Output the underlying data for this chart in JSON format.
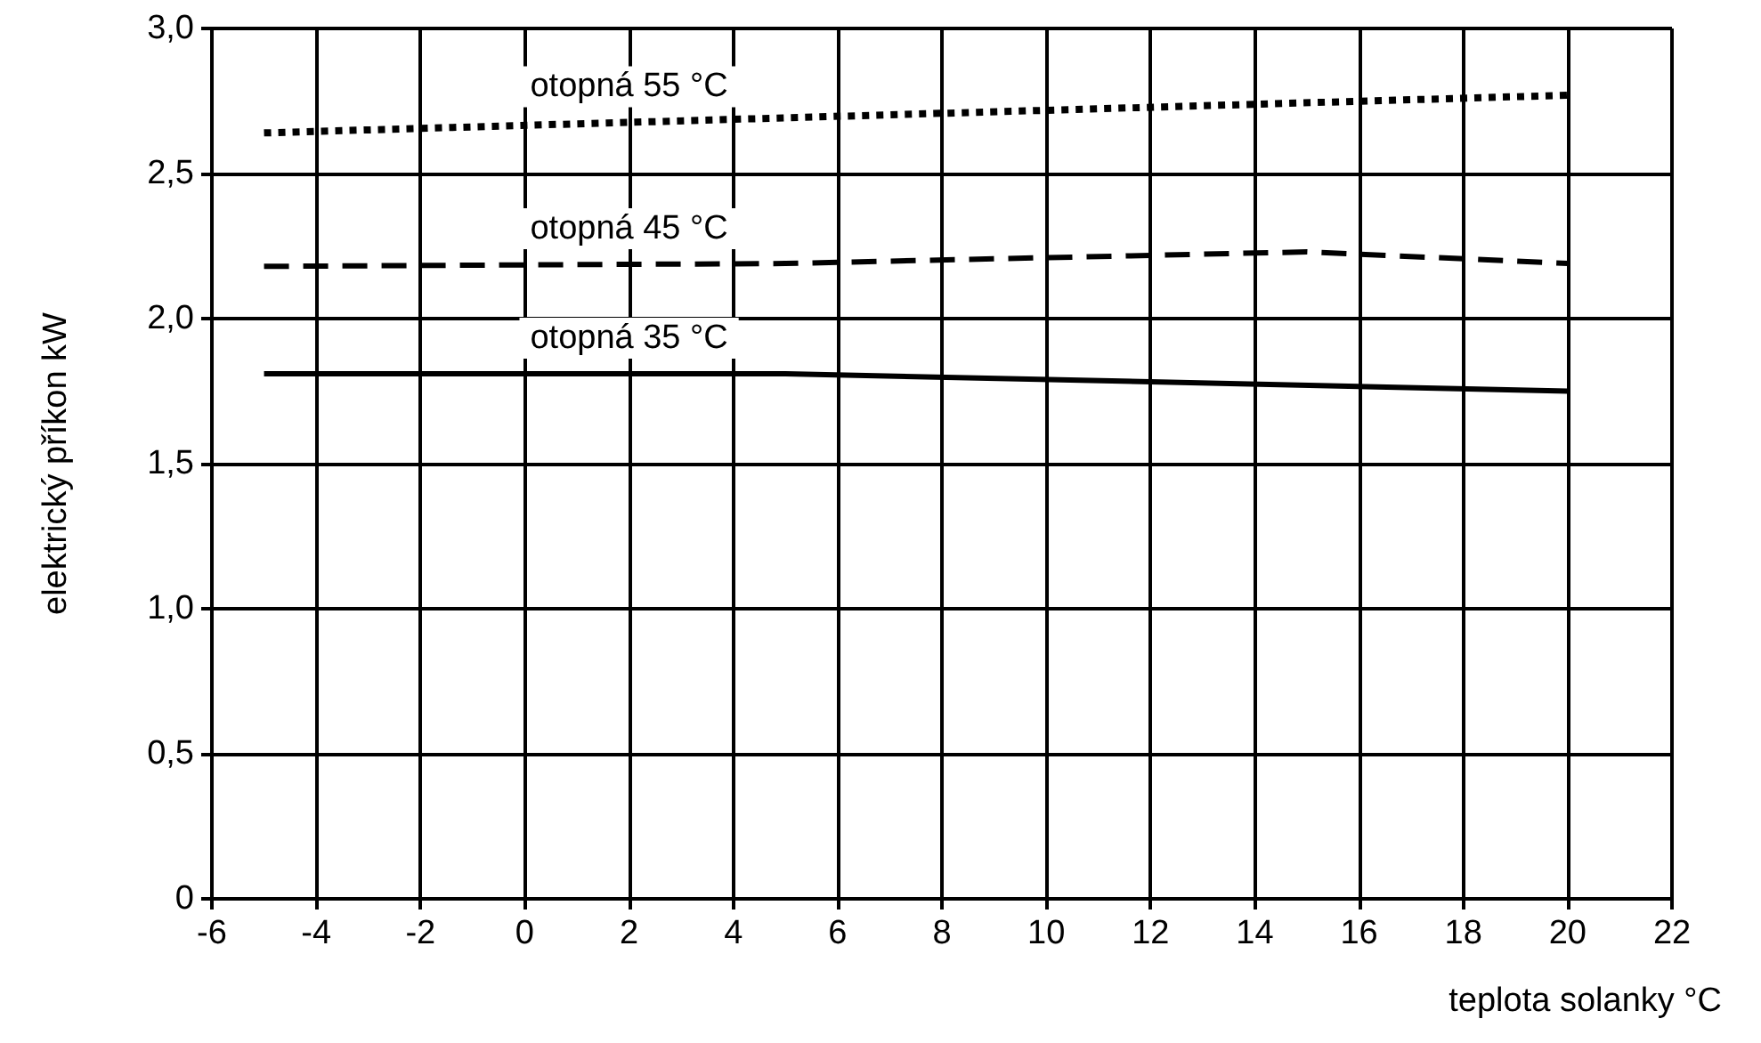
{
  "chart_data": {
    "type": "line",
    "xlabel": "teplota solanky °C",
    "ylabel": "elektrický příkon kW",
    "xlim": [
      -6,
      22
    ],
    "xticks": [
      -6,
      -4,
      -2,
      0,
      2,
      4,
      6,
      8,
      10,
      12,
      14,
      16,
      18,
      20,
      22
    ],
    "ylim": [
      0,
      3
    ],
    "yticks": [
      0,
      {
        "value": 0.5,
        "label": "0,5"
      },
      {
        "value": 1,
        "label": "1,0"
      },
      {
        "value": 1.5,
        "label": "1,5"
      },
      {
        "value": 2,
        "label": "2,0"
      },
      {
        "value": 2.5,
        "label": "2,5"
      },
      {
        "value": 3,
        "label": "3,0"
      }
    ],
    "grid": true,
    "legend": false,
    "marker": "none",
    "series": [
      {
        "name": "otopná 55 °C",
        "color": "#000000",
        "line_style": "dotted",
        "x": [
          -5,
          20
        ],
        "values": [
          2.64,
          2.77
        ]
      },
      {
        "name": "otopná 45 °C",
        "color": "#000000",
        "line_style": "dashed",
        "x": [
          -5,
          5,
          15,
          20
        ],
        "values": [
          2.18,
          2.19,
          2.23,
          2.19
        ]
      },
      {
        "name": "otopná 35 °C",
        "color": "#000000",
        "line_style": "solid",
        "x": [
          -5,
          5,
          20
        ],
        "values": [
          1.81,
          1.81,
          1.75
        ]
      }
    ]
  }
}
